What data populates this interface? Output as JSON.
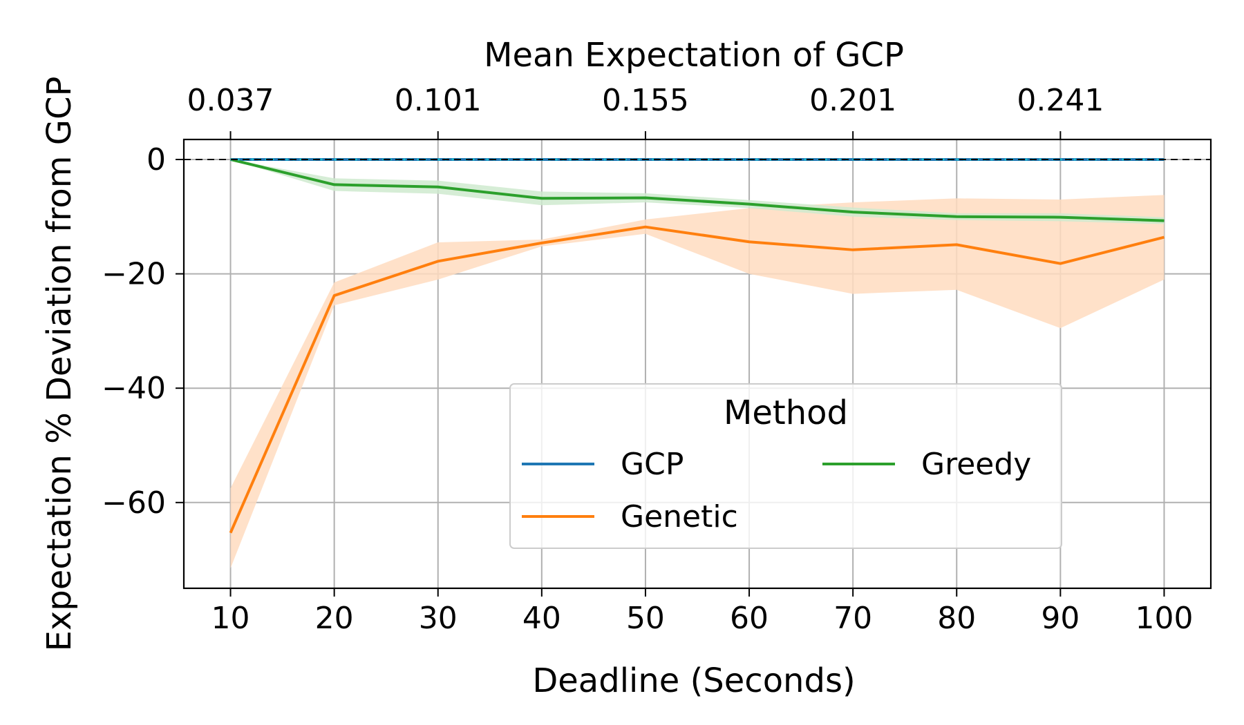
{
  "chart_data": {
    "type": "line",
    "xlabel": "Deadline (Seconds)",
    "ylabel": "Expectation % Deviation from GCP",
    "top_xlabel": "Mean Expectation of GCP",
    "x": [
      10,
      20,
      30,
      40,
      50,
      60,
      70,
      80,
      90,
      100
    ],
    "xlim": [
      5.5,
      104.5
    ],
    "ylim": [
      -75,
      3.5
    ],
    "xticks": [
      10,
      20,
      30,
      40,
      50,
      60,
      70,
      80,
      90,
      100
    ],
    "xtick_labels": [
      "10",
      "20",
      "30",
      "40",
      "50",
      "60",
      "70",
      "80",
      "90",
      "100"
    ],
    "yticks": [
      0,
      -20,
      -40,
      -60
    ],
    "ytick_labels": [
      "0",
      "−20",
      "−40",
      "−60"
    ],
    "top_xticks": [
      10,
      30,
      50,
      70,
      90
    ],
    "top_xtick_labels": [
      "0.037",
      "0.101",
      "0.155",
      "0.201",
      "0.241"
    ],
    "grid": true,
    "reference_line": {
      "y": 0,
      "style": "dashed",
      "color": "#000000"
    },
    "legend": {
      "title": "Method",
      "placement": "lower-right",
      "columns": 2
    },
    "series": [
      {
        "name": "GCP",
        "color": "#1f77b4",
        "values": [
          0,
          0,
          0,
          0,
          0,
          0,
          0,
          0,
          0,
          0
        ],
        "band_low": [
          0,
          0,
          0,
          0,
          0,
          0,
          0,
          0,
          0,
          0
        ],
        "band_high": [
          0,
          0,
          0,
          0,
          0,
          0,
          0,
          0,
          0,
          0
        ]
      },
      {
        "name": "Genetic",
        "color": "#ff7f0e",
        "band_color": "#ffdcbf",
        "values": [
          -65.3,
          -23.8,
          -17.8,
          -14.6,
          -11.8,
          -14.4,
          -15.8,
          -14.9,
          -18.2,
          -13.6
        ],
        "band_low": [
          -71.5,
          -25.5,
          -21.0,
          -15.2,
          -13.0,
          -20.0,
          -23.5,
          -22.8,
          -29.5,
          -21.0
        ],
        "band_high": [
          -57.5,
          -21.5,
          -14.5,
          -14.0,
          -10.5,
          -8.5,
          -7.5,
          -6.8,
          -7.0,
          -6.2
        ]
      },
      {
        "name": "Greedy",
        "color": "#2ca02c",
        "band_color": "#cfeacf",
        "values": [
          0,
          -4.4,
          -4.8,
          -6.8,
          -6.7,
          -7.8,
          -9.2,
          -10.0,
          -10.1,
          -10.7
        ],
        "band_low": [
          0,
          -5.5,
          -6.0,
          -8.0,
          -7.5,
          -8.5,
          -10.0,
          -10.6,
          -10.8,
          -11.3
        ],
        "band_high": [
          0,
          -3.3,
          -3.7,
          -5.6,
          -5.9,
          -7.1,
          -8.4,
          -9.4,
          -9.4,
          -10.1
        ]
      }
    ]
  }
}
